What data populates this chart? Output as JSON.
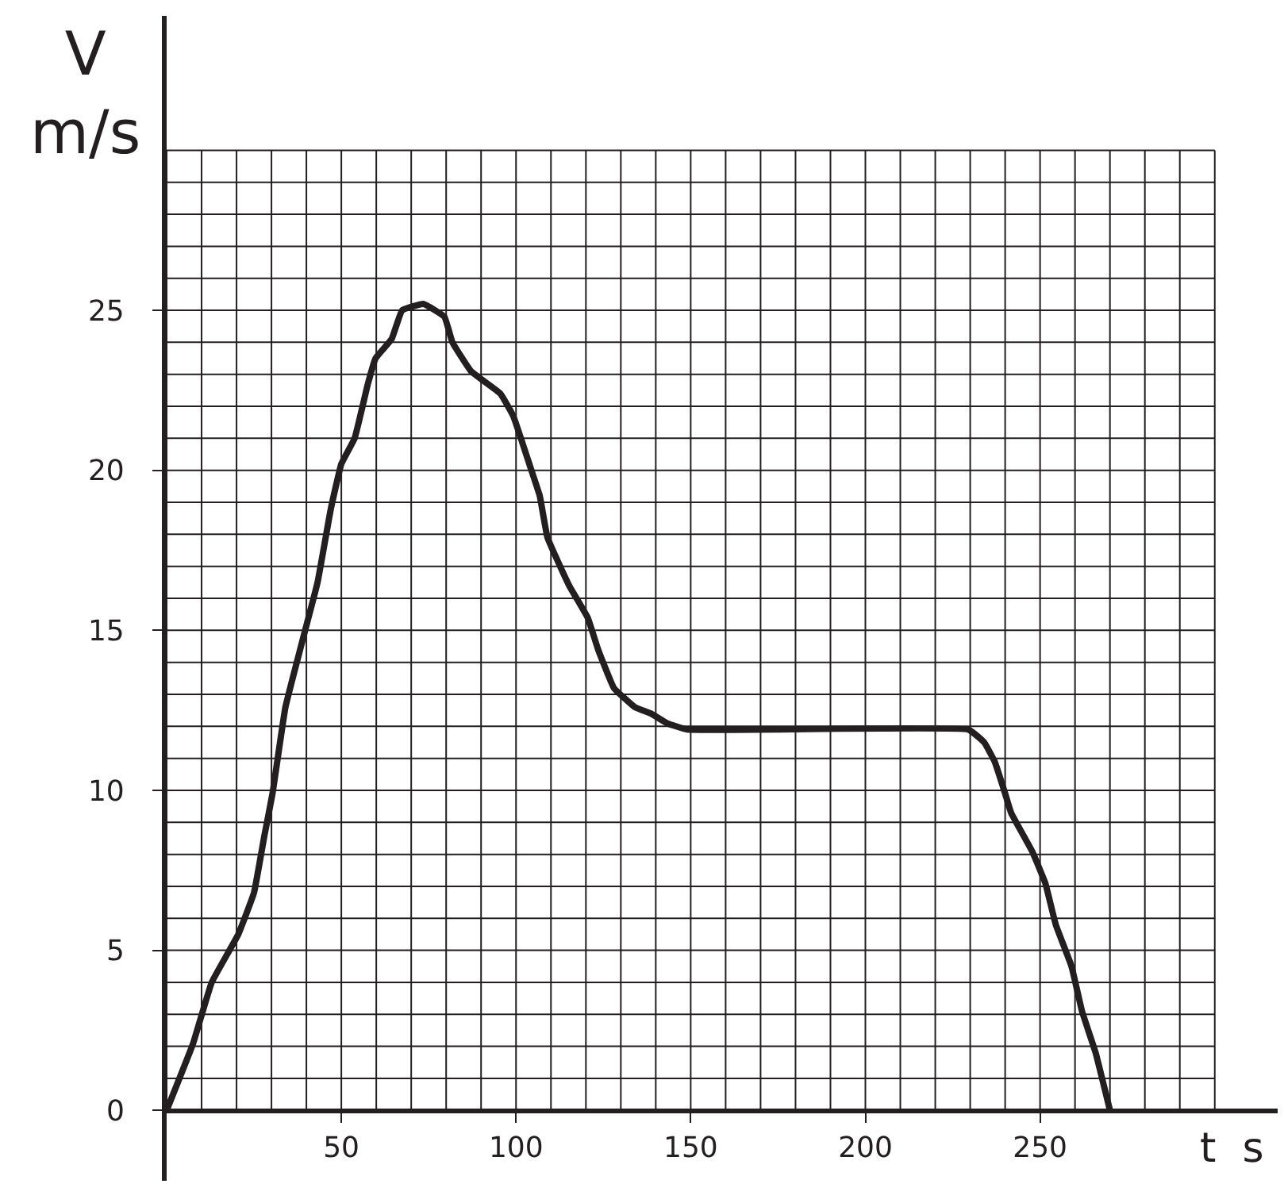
{
  "chart_data": {
    "type": "line",
    "xlabel": "t s",
    "ylabel": "V\nm/s",
    "x": [
      0,
      7.6,
      12.9,
      20.5,
      25,
      28,
      30.3,
      34,
      39.4,
      43.2,
      47,
      50,
      53.8,
      57.6,
      59.8,
      64.4,
      67.4,
      73.5,
      79.5,
      81.8,
      87.1,
      95.5,
      99.2,
      103.8,
      106.8,
      109,
      115.2,
      120.5,
      123.5,
      128,
      134,
      138.6,
      143.2,
      149,
      229.5,
      234,
      237,
      240,
      241.7,
      247.7,
      251.5,
      254.5,
      259,
      262,
      265.9,
      270
    ],
    "series": [
      {
        "color": "#231f20",
        "values": [
          0,
          2.1,
          4.0,
          5.5,
          6.8,
          8.6,
          9.9,
          12.6,
          14.9,
          16.5,
          18.8,
          20.2,
          21.0,
          22.7,
          23.5,
          24.1,
          25.0,
          25.2,
          24.8,
          24.0,
          23.1,
          22.4,
          21.7,
          20.2,
          19.2,
          17.9,
          16.4,
          15.4,
          14.4,
          13.2,
          12.6,
          12.4,
          12.1,
          11.9,
          11.9,
          11.5,
          10.9,
          9.9,
          9.3,
          8.1,
          7.1,
          5.8,
          4.5,
          3.1,
          1.8,
          0
        ]
      }
    ],
    "xlim": [
      0,
      318
    ],
    "ylim": [
      -2.2,
      34.2
    ],
    "xticks": [
      50,
      100,
      150,
      200,
      250
    ],
    "yticks": [
      0,
      5,
      10,
      15,
      20,
      25
    ],
    "grid": true,
    "marker": "none",
    "line_style": "solid",
    "legend": false
  }
}
